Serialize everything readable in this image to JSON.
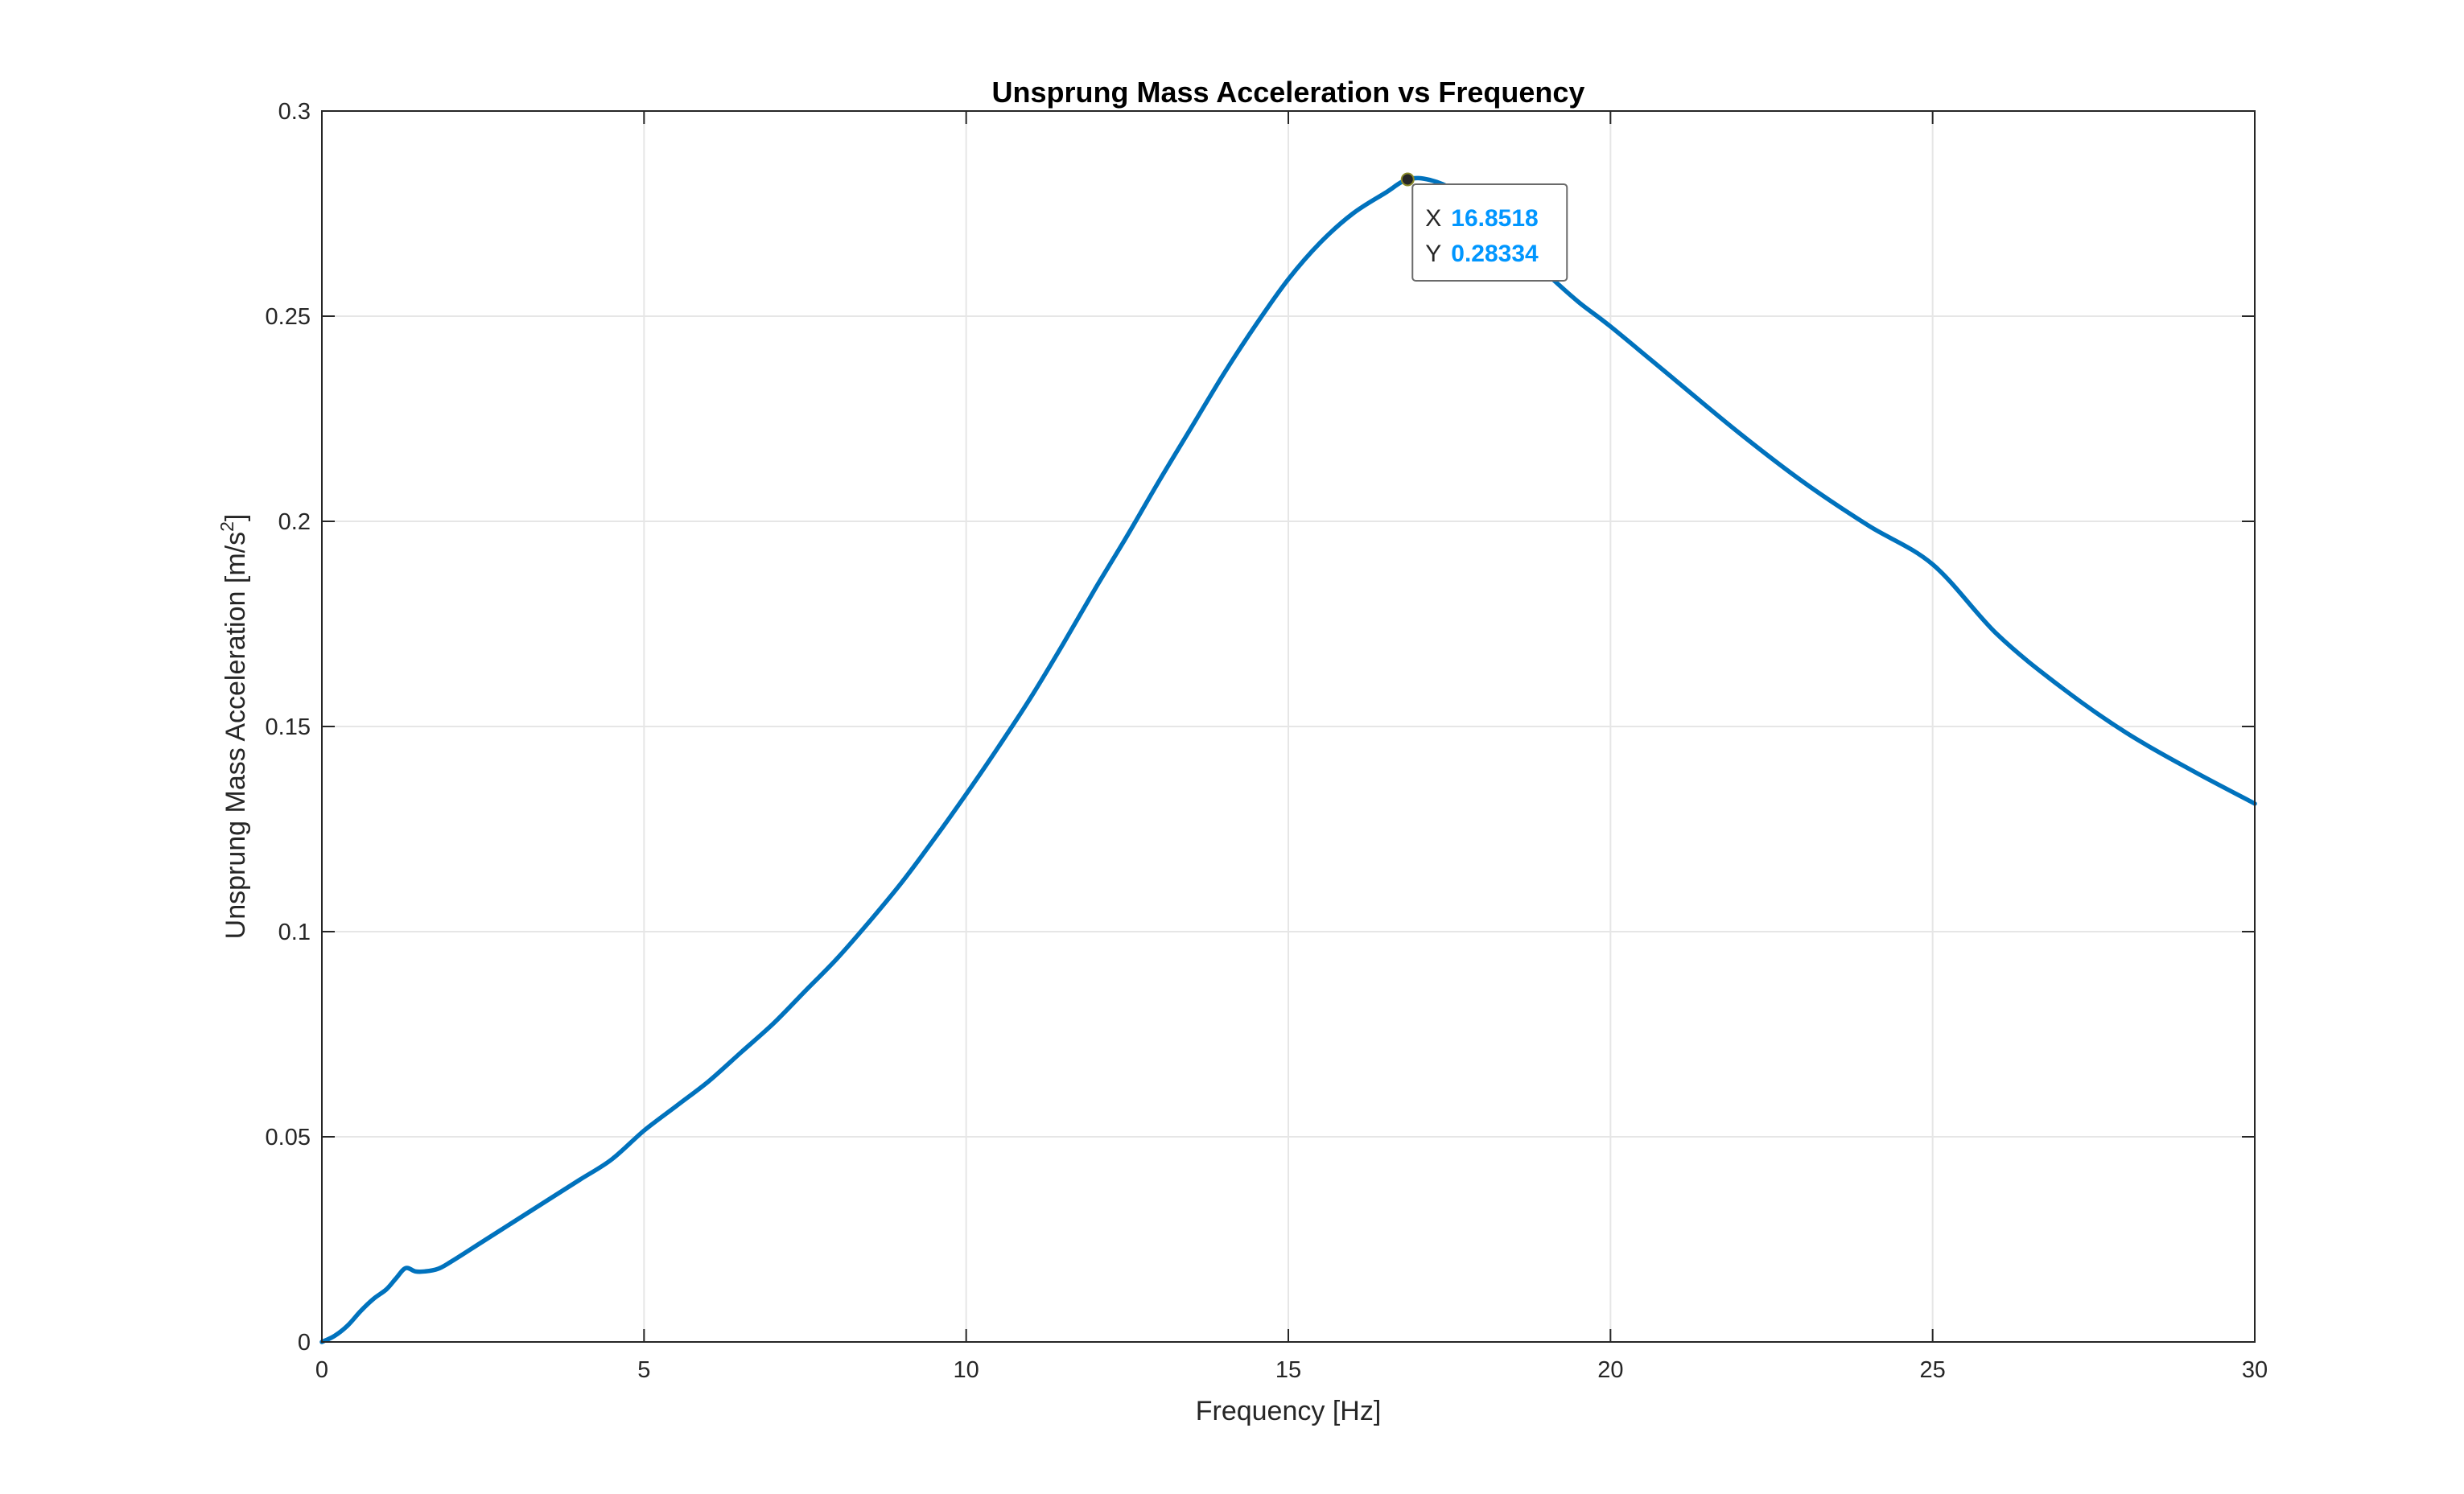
{
  "chart_data": {
    "type": "line",
    "title": "Unsprung Mass Acceleration vs Frequency",
    "xlabel": "Frequency [Hz]",
    "ylabel_text": "Unsprung Mass Acceleration [m/s",
    "ylabel_superscript": "2",
    "ylabel_close": "]",
    "xlim": [
      0,
      30
    ],
    "ylim": [
      0,
      0.3
    ],
    "xticks": [
      0,
      5,
      10,
      15,
      20,
      25,
      30
    ],
    "xtick_labels": [
      "0",
      "5",
      "10",
      "15",
      "20",
      "25",
      "30"
    ],
    "yticks": [
      0,
      0.05,
      0.1,
      0.15,
      0.2,
      0.25,
      0.3
    ],
    "ytick_labels": [
      "0",
      "0.05",
      "0.1",
      "0.15",
      "0.2",
      "0.25",
      "0.3"
    ],
    "grid": true,
    "line_color": "#0072bd",
    "series": [
      {
        "x": [
          0,
          0.2,
          0.4,
          0.6,
          0.8,
          1.0,
          1.15,
          1.3,
          1.45,
          1.6,
          1.8,
          2.0,
          2.5,
          3.0,
          3.5,
          4.0,
          4.5,
          5.0,
          5.5,
          6.0,
          6.5,
          7.0,
          7.5,
          8.0,
          8.5,
          9.0,
          9.5,
          10.0,
          10.5,
          11.0,
          11.5,
          12.0,
          12.5,
          13.0,
          13.5,
          14.0,
          14.5,
          15.0,
          15.5,
          16.0,
          16.5,
          16.8518,
          17.2,
          17.6,
          18.0,
          18.5,
          19.0,
          19.5,
          20.0,
          21.0,
          22.0,
          23.0,
          24.0,
          25.0,
          26.0,
          27.0,
          28.0,
          29.0,
          30.0
        ],
        "y": [
          0,
          0.0015,
          0.004,
          0.0075,
          0.0105,
          0.0128,
          0.0155,
          0.018,
          0.0172,
          0.0172,
          0.0178,
          0.0195,
          0.0245,
          0.0295,
          0.0345,
          0.0395,
          0.0445,
          0.0515,
          0.0575,
          0.0635,
          0.0705,
          0.0775,
          0.0855,
          0.0935,
          0.1025,
          0.112,
          0.1225,
          0.1335,
          0.145,
          0.157,
          0.17,
          0.1835,
          0.1965,
          0.21,
          0.223,
          0.236,
          0.248,
          0.259,
          0.268,
          0.275,
          0.28,
          0.28334,
          0.2832,
          0.2805,
          0.2755,
          0.268,
          0.2605,
          0.2535,
          0.2475,
          0.2345,
          0.2215,
          0.2095,
          0.199,
          0.1895,
          0.1725,
          0.1595,
          0.1485,
          0.1395,
          0.1312
        ]
      }
    ],
    "datatip": {
      "x_key": "X",
      "x_value": "16.8518",
      "y_key": "Y",
      "y_value": "0.28334",
      "point_x": 16.8518,
      "point_y": 0.28334
    }
  }
}
